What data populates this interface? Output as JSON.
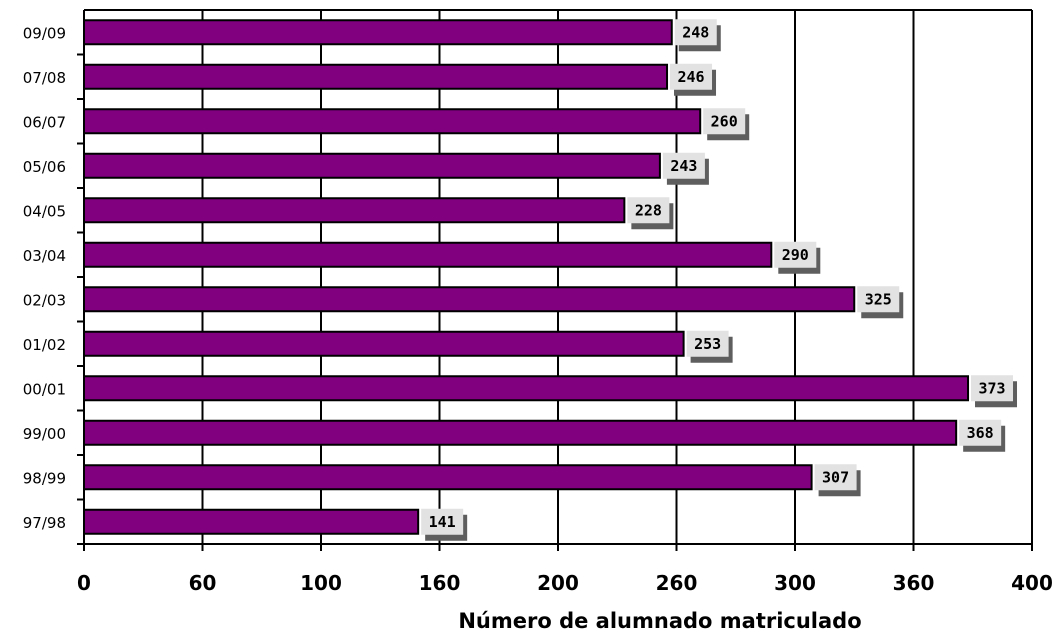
{
  "chart_data": {
    "type": "bar",
    "orientation": "horizontal",
    "categories": [
      "09/09",
      "07/08",
      "06/07",
      "05/06",
      "04/05",
      "03/04",
      "02/03",
      "01/02",
      "00/01",
      "99/00",
      "98/99",
      "97/98"
    ],
    "values": [
      248,
      246,
      260,
      243,
      228,
      290,
      325,
      253,
      373,
      368,
      307,
      141
    ],
    "xlabel": "Número de alumnado matriculado",
    "x_ticks": [
      "0",
      "60",
      "100",
      "160",
      "200",
      "260",
      "300",
      "360",
      "400"
    ],
    "xlim": [
      0,
      400
    ],
    "grid": "vertical",
    "colors": {
      "bar": "#800080",
      "label_bg": "#e2e2e2",
      "label_shadow": "#5e5e5e"
    }
  }
}
